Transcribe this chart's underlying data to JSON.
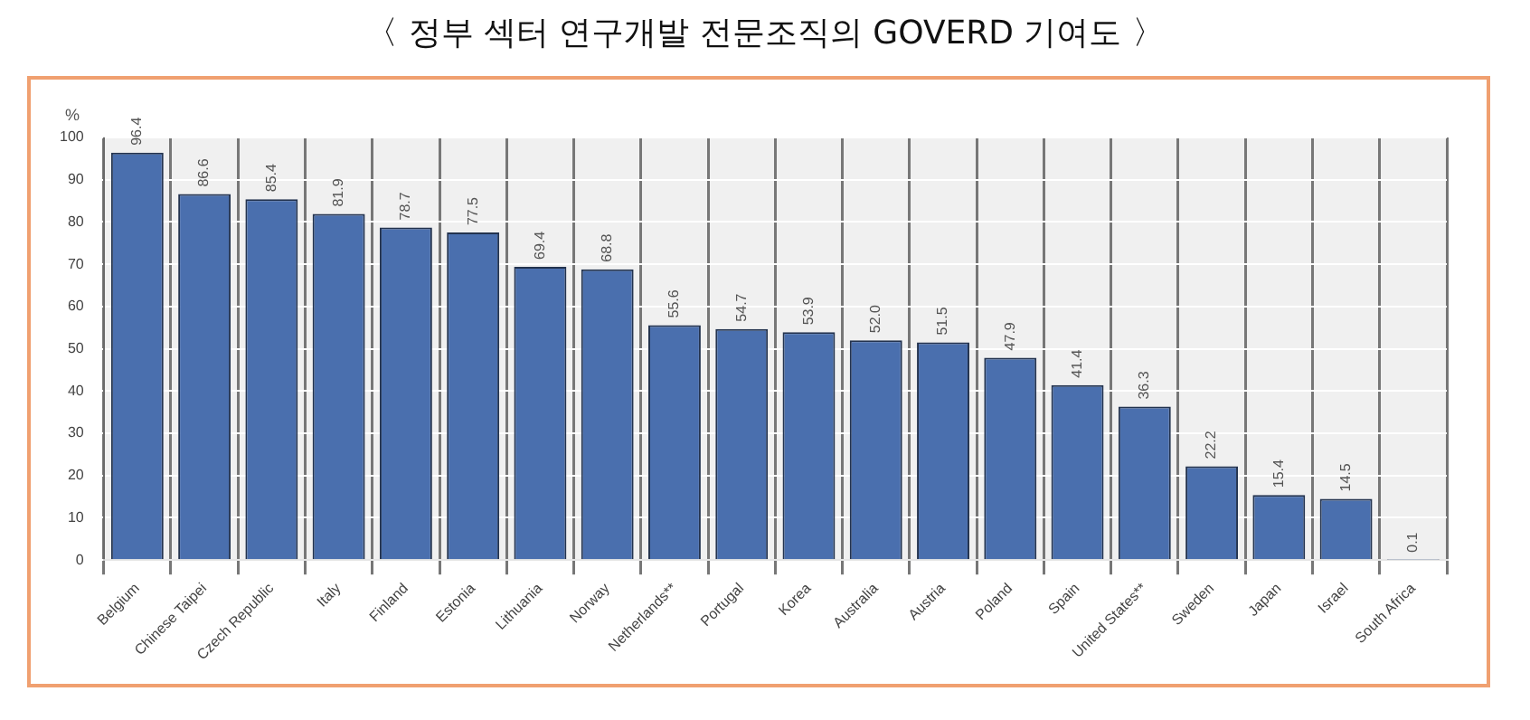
{
  "chart_data": {
    "type": "bar",
    "title": "〈 정부 섹터 연구개발 전문조직의 GOVERD 기여도 〉",
    "ylabel": "%",
    "categories": [
      "Belgium",
      "Chinese Taipei",
      "Czech Republic",
      "Italy",
      "Finland",
      "Estonia",
      "Lithuania",
      "Norway",
      "Netherlands**",
      "Portugal",
      "Korea",
      "Australia",
      "Austria",
      "Poland",
      "Spain",
      "United States**",
      "Sweden",
      "Japan",
      "Israel",
      "South Africa"
    ],
    "values": [
      96.4,
      86.6,
      85.4,
      81.9,
      78.7,
      77.5,
      69.4,
      68.8,
      55.6,
      54.7,
      53.9,
      52.0,
      51.5,
      47.9,
      41.4,
      36.3,
      22.2,
      15.4,
      14.5,
      0.1
    ],
    "value_labels": [
      "96.4",
      "86.6",
      "85.4",
      "81.9",
      "78.7",
      "77.5",
      "69.4",
      "68.8",
      "55.6",
      "54.7",
      "53.9",
      "52.0",
      "51.5",
      "47.9",
      "41.4",
      "36.3",
      "22.2",
      "15.4",
      "14.5",
      "0.1"
    ],
    "color": "#4a6fae",
    "ylim": [
      0,
      100
    ],
    "yticks": [
      0,
      10,
      20,
      30,
      40,
      50,
      60,
      70,
      80,
      90,
      100
    ],
    "grid": true
  }
}
